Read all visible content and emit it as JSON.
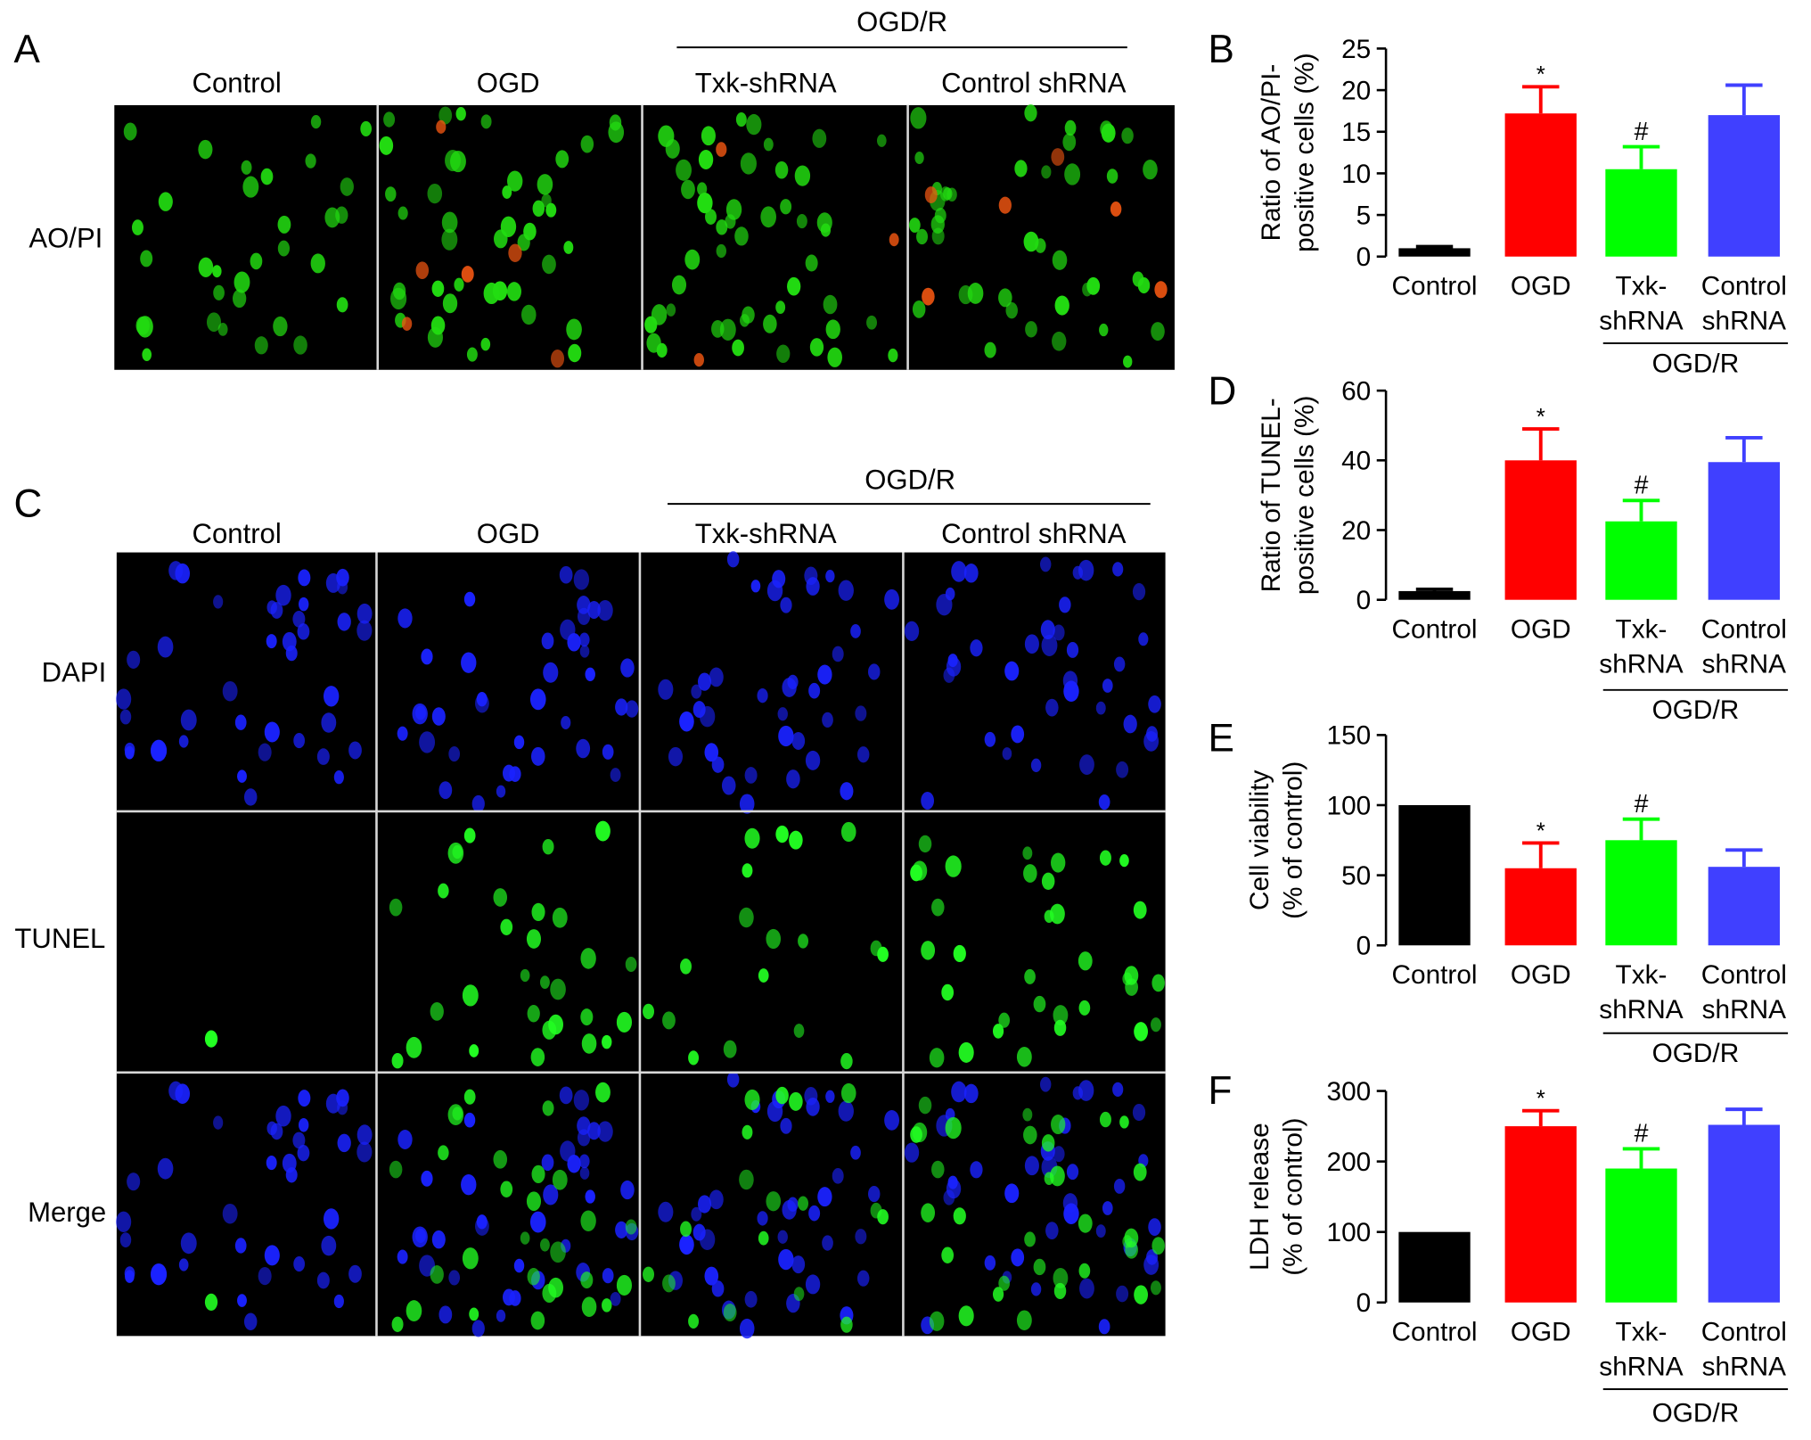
{
  "figure": {
    "panel_letters": [
      "A",
      "B",
      "C",
      "D",
      "E",
      "F"
    ],
    "panel_a": {
      "group_label": "OGD/R",
      "column_labels": [
        "Control",
        "OGD",
        "Txk-shRNA",
        "Control shRNA"
      ],
      "row_labels": [
        "AO/PI"
      ]
    },
    "panel_c": {
      "group_label": "OGD/R",
      "column_labels": [
        "Control",
        "OGD",
        "Txk-shRNA",
        "Control shRNA"
      ],
      "row_labels": [
        "DAPI",
        "TUNEL",
        "Merge"
      ]
    },
    "colors": {
      "control": "#000000",
      "ogd": "#ff0000",
      "txk_shrna": "#00ff00",
      "control_shrna": "#4040ff",
      "ao_pi_cell": "#22dd11",
      "ao_pi_dead_cell": "#ee5511",
      "dapi_cell": "#1a22ff",
      "tunel_cell": "#22ff22",
      "micrograph_background": "#000000"
    }
  },
  "chart_data": [
    {
      "panel": "B",
      "type": "bar",
      "categories": [
        "Control",
        "OGD",
        "Txk-shRNA",
        "Control shRNA"
      ],
      "category_label_lines": [
        [
          "Control"
        ],
        [
          "OGD"
        ],
        [
          "Txk-",
          "shRNA"
        ],
        [
          "Control",
          "shRNA"
        ]
      ],
      "values": [
        1,
        17.2,
        10.5,
        17
      ],
      "errors": [
        0.2,
        3.2,
        2.7,
        3.6
      ],
      "annotations": [
        "",
        "*",
        "#",
        ""
      ],
      "ylabel_lines": [
        "Ratio of AO/PI-",
        "positive cells (%)"
      ],
      "ylim": [
        0,
        25
      ],
      "yticks": [
        0,
        5,
        10,
        15,
        20,
        25
      ],
      "group_label": "OGD/R",
      "grid": false
    },
    {
      "panel": "D",
      "type": "bar",
      "categories": [
        "Control",
        "OGD",
        "Txk-shRNA",
        "Control shRNA"
      ],
      "category_label_lines": [
        [
          "Control"
        ],
        [
          "OGD"
        ],
        [
          "Txk-",
          "shRNA"
        ],
        [
          "Control",
          "shRNA"
        ]
      ],
      "values": [
        2.5,
        40,
        22.5,
        39.5
      ],
      "errors": [
        0.5,
        9,
        6,
        7
      ],
      "annotations": [
        "",
        "*",
        "#",
        ""
      ],
      "ylabel_lines": [
        "Ratio of TUNEL-",
        "positive cells (%)"
      ],
      "ylim": [
        0,
        60
      ],
      "yticks": [
        0,
        20,
        40,
        60
      ],
      "group_label": "OGD/R",
      "grid": false
    },
    {
      "panel": "E",
      "type": "bar",
      "categories": [
        "Control",
        "OGD",
        "Txk-shRNA",
        "Control shRNA"
      ],
      "category_label_lines": [
        [
          "Control"
        ],
        [
          "OGD"
        ],
        [
          "Txk-",
          "shRNA"
        ],
        [
          "Control",
          "shRNA"
        ]
      ],
      "values": [
        100,
        55,
        75,
        56
      ],
      "errors": [
        0,
        18,
        15,
        12
      ],
      "annotations": [
        "",
        "*",
        "#",
        ""
      ],
      "ylabel_lines": [
        "Cell viability",
        "(% of control)"
      ],
      "ylim": [
        0,
        150
      ],
      "yticks": [
        0,
        50,
        100,
        150
      ],
      "group_label": "OGD/R",
      "grid": false
    },
    {
      "panel": "F",
      "type": "bar",
      "categories": [
        "Control",
        "OGD",
        "Txk-shRNA",
        "Control shRNA"
      ],
      "category_label_lines": [
        [
          "Control"
        ],
        [
          "OGD"
        ],
        [
          "Txk-",
          "shRNA"
        ],
        [
          "Control",
          "shRNA"
        ]
      ],
      "values": [
        100,
        250,
        190,
        252
      ],
      "errors": [
        0,
        22,
        28,
        22
      ],
      "annotations": [
        "",
        "*",
        "#",
        ""
      ],
      "ylabel_lines": [
        "LDH release",
        "(% of control)"
      ],
      "ylim": [
        0,
        300
      ],
      "yticks": [
        0,
        100,
        200,
        300
      ],
      "group_label": "OGD/R",
      "grid": false
    }
  ]
}
